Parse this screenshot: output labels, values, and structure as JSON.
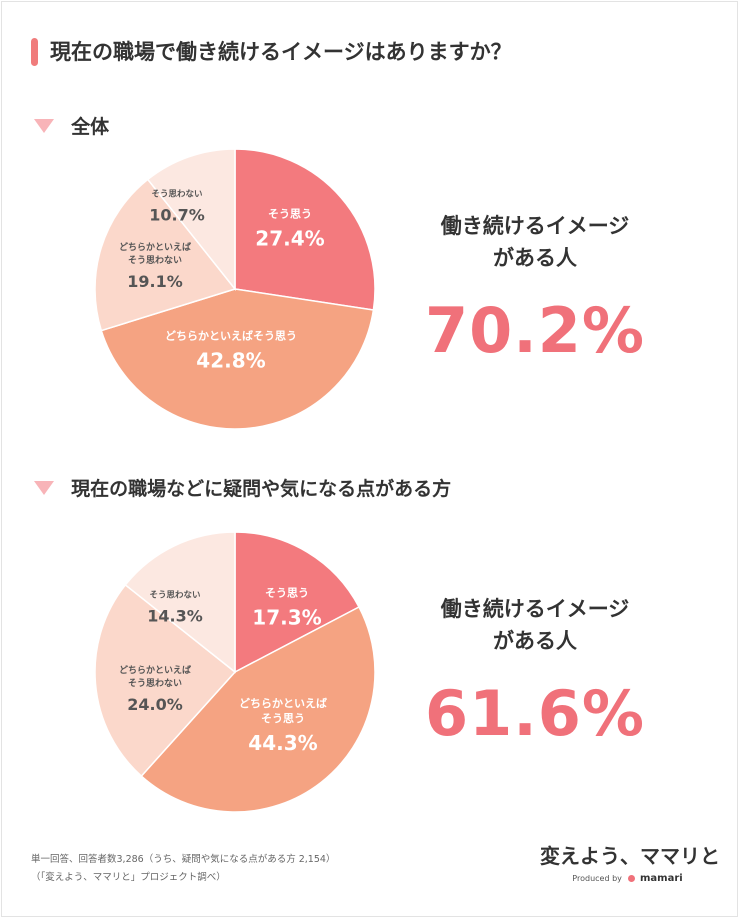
{
  "title": "現在の職場で働き続けるイメージはありますか？",
  "colors": {
    "accent": "#f0717a",
    "slice_sou_omou": "#f37a7e",
    "slice_dochiraka_omou": "#f5a382",
    "slice_dochiraka_omowanai": "#fbd8cb",
    "slice_omowanai": "#fce8e1"
  },
  "sections": [
    {
      "heading": "全体",
      "summary_label_1": "働き続けるイメージ",
      "summary_label_2": "がある人",
      "summary_value": "70.2%"
    },
    {
      "heading": "現在の職場などに疑問や気になる点がある方",
      "summary_label_1": "働き続けるイメージ",
      "summary_label_2": "がある人",
      "summary_value": "61.6%"
    }
  ],
  "chart_data": [
    {
      "type": "pie",
      "title": "全体",
      "slices": [
        {
          "label": "そう思う",
          "value": 27.4,
          "display": "27.4%"
        },
        {
          "label": "どちらかといえばそう思う",
          "value": 42.8,
          "display": "42.8%"
        },
        {
          "label": "どちらかといえばそう思わない",
          "value": 19.1,
          "display": "19.1%"
        },
        {
          "label": "そう思わない",
          "value": 10.7,
          "display": "10.7%"
        }
      ]
    },
    {
      "type": "pie",
      "title": "現在の職場などに疑問や気になる点がある方",
      "slices": [
        {
          "label": "そう思う",
          "value": 17.3,
          "display": "17.3%"
        },
        {
          "label": "どちらかといえばそう思う",
          "value": 44.3,
          "display": "44.3%"
        },
        {
          "label": "どちらかといえばそう思わない",
          "value": 24.0,
          "display": "24.0%"
        },
        {
          "label": "そう思わない",
          "value": 14.3,
          "display": "14.3%"
        }
      ]
    }
  ],
  "footnote": {
    "line1": "単一回答、回答者数3,286（うち、疑問や気になる点がある方 2,154）",
    "line2": "（「変えよう、ママリと」プロジェクト調べ）"
  },
  "brand": {
    "title": "変えよう、ママリと",
    "produced_by": "Produced by",
    "logo": "mamari"
  }
}
